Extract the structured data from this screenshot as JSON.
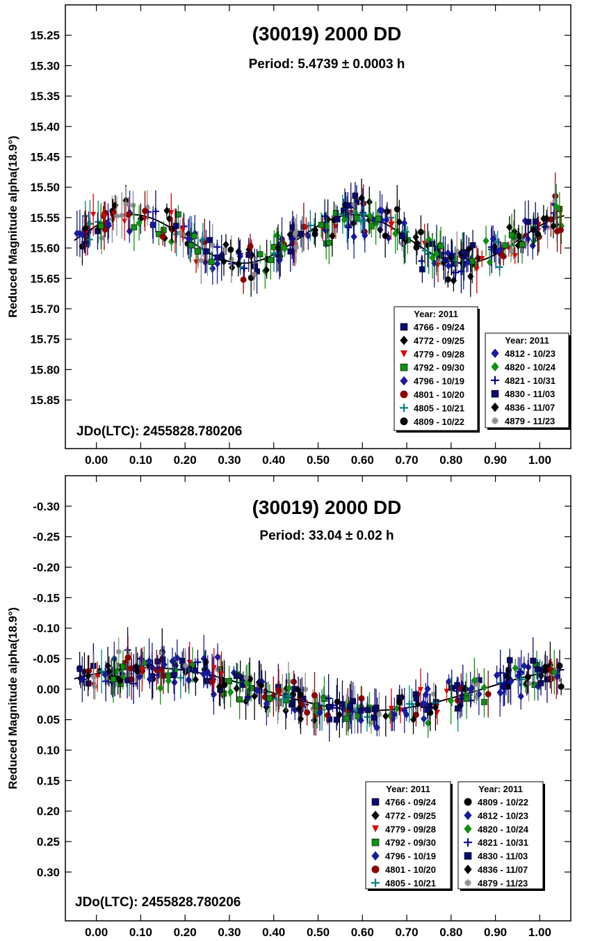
{
  "chart_data": [
    {
      "type": "scatter",
      "title": "(30019) 2000 DD",
      "subtitle": "Period: 5.4739 ± 0.0003 h",
      "ylabel": "Reduced Magnitude alpha(18.9°)",
      "xlabel": "",
      "annotation": "JDo(LTC): 2455828.780206",
      "xlim": [
        -0.07,
        1.07
      ],
      "ylim": [
        15.2,
        15.93
      ],
      "y_inverted": true,
      "x_ticks": [
        "0.00",
        "0.10",
        "0.20",
        "0.30",
        "0.40",
        "0.50",
        "0.60",
        "0.70",
        "0.80",
        "0.90",
        "1.00"
      ],
      "y_ticks": [
        "15.25",
        "15.30",
        "15.35",
        "15.40",
        "15.45",
        "15.50",
        "15.55",
        "15.60",
        "15.65",
        "15.70",
        "15.75",
        "15.80",
        "15.85"
      ],
      "model": {
        "mean": 15.585,
        "amplitude": 0.04
      },
      "legend_placement": "bottom-right",
      "legends": [
        {
          "heading": "Year: 2011",
          "entries": [
            {
              "label": "4766 - 09/24",
              "color": "#0a0a6e",
              "marker": "square"
            },
            {
              "label": "4772 - 09/25",
              "color": "#000000",
              "marker": "diamond"
            },
            {
              "label": "4779 - 09/28",
              "color": "#e00000",
              "marker": "triangle-down"
            },
            {
              "label": "4792 - 09/30",
              "color": "#109010",
              "marker": "square"
            },
            {
              "label": "4796 - 10/19",
              "color": "#1a1aa0",
              "marker": "diamond"
            },
            {
              "label": "4801 - 10/20",
              "color": "#8b0000",
              "marker": "circle"
            },
            {
              "label": "4805 - 10/21",
              "color": "#008080",
              "marker": "plus"
            },
            {
              "label": "4809 - 10/22",
              "color": "#000000",
              "marker": "circle"
            }
          ]
        },
        {
          "heading": "Year: 2011",
          "entries": [
            {
              "label": "4812 - 10/23",
              "color": "#1a1aa0",
              "marker": "diamond"
            },
            {
              "label": "4820 - 10/24",
              "color": "#109010",
              "marker": "diamond"
            },
            {
              "label": "4821 - 10/31",
              "color": "#00008b",
              "marker": "plus"
            },
            {
              "label": "4830 - 11/03",
              "color": "#0a0a6e",
              "marker": "square"
            },
            {
              "label": "4836 - 11/07",
              "color": "#000000",
              "marker": "diamond"
            },
            {
              "label": "4879 - 11/23",
              "color": "#8c8c8c",
              "marker": "asterisk"
            }
          ]
        }
      ]
    },
    {
      "type": "scatter",
      "title": "(30019) 2000 DD",
      "subtitle": "Period: 33.04 ± 0.02 h",
      "ylabel": "Reduced Magnitude alpha(18.9°)",
      "xlabel": "",
      "annotation": "JDo(LTC): 2455828.780206",
      "xlim": [
        -0.07,
        1.07
      ],
      "ylim": [
        -0.35,
        0.38
      ],
      "y_inverted": true,
      "x_ticks": [
        "0.00",
        "0.10",
        "0.20",
        "0.30",
        "0.40",
        "0.50",
        "0.60",
        "0.70",
        "0.80",
        "0.90",
        "1.00"
      ],
      "y_ticks": [
        "-0.30",
        "-0.25",
        "-0.20",
        "-0.15",
        "-0.10",
        "-0.05",
        "0.00",
        "0.05",
        "0.10",
        "0.15",
        "0.20",
        "0.25",
        "0.30"
      ],
      "model": {
        "mean": 0.0,
        "amplitude": 0.035
      },
      "legend_placement": "bottom-right",
      "legends": [
        {
          "heading": "Year: 2011",
          "entries": [
            {
              "label": "4766 - 09/24",
              "color": "#0a0a6e",
              "marker": "square"
            },
            {
              "label": "4772 - 09/25",
              "color": "#000000",
              "marker": "diamond"
            },
            {
              "label": "4779 - 09/28",
              "color": "#e00000",
              "marker": "triangle-down"
            },
            {
              "label": "4792 - 09/30",
              "color": "#109010",
              "marker": "square"
            },
            {
              "label": "4796 - 10/19",
              "color": "#1a1aa0",
              "marker": "diamond"
            },
            {
              "label": "4801 - 10/20",
              "color": "#8b0000",
              "marker": "circle"
            },
            {
              "label": "4805 - 10/21",
              "color": "#008080",
              "marker": "plus"
            }
          ]
        },
        {
          "heading": "Year: 2011",
          "entries": [
            {
              "label": "4809 - 10/22",
              "color": "#000000",
              "marker": "circle"
            },
            {
              "label": "4812 - 10/23",
              "color": "#1a1aa0",
              "marker": "diamond"
            },
            {
              "label": "4820 - 10/24",
              "color": "#109010",
              "marker": "diamond"
            },
            {
              "label": "4821 - 10/31",
              "color": "#00008b",
              "marker": "plus"
            },
            {
              "label": "4830 - 11/03",
              "color": "#0a0a6e",
              "marker": "square"
            },
            {
              "label": "4836 - 11/07",
              "color": "#000000",
              "marker": "diamond"
            },
            {
              "label": "4879 - 11/23",
              "color": "#8c8c8c",
              "marker": "asterisk"
            }
          ]
        }
      ]
    }
  ]
}
